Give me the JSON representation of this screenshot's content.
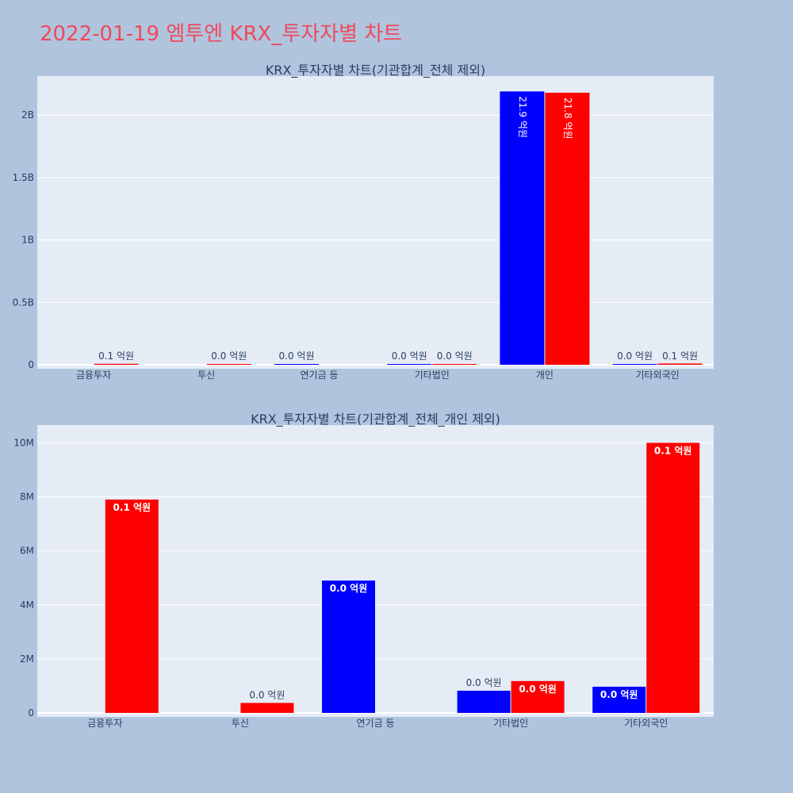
{
  "page": {
    "title": "2022-01-19 엠투엔 KRX_투자자별 차트"
  },
  "colors": {
    "buy": "#0000ff",
    "sell": "#ff0000",
    "plot_bg": "#e5ecf6",
    "page_bg": "#b0c4de",
    "title": "#ef4a5b"
  },
  "chart_data": [
    {
      "type": "bar",
      "title": "KRX_투자자별 차트(기관합계_전체 제외)",
      "categories": [
        "금융투자",
        "투신",
        "연기금 등",
        "기타법인",
        "개인",
        "기타외국인"
      ],
      "ylim": [
        0,
        2300000000
      ],
      "yticks": [
        {
          "value": 0,
          "label": "0"
        },
        {
          "value": 500000000,
          "label": "0.5B"
        },
        {
          "value": 1000000000,
          "label": "1B"
        },
        {
          "value": 1500000000,
          "label": "1.5B"
        },
        {
          "value": 2000000000,
          "label": "2B"
        }
      ],
      "grid": true,
      "series": [
        {
          "color": "#0000ff",
          "values": [
            0,
            0,
            4900000,
            820000,
            2190000000,
            970000
          ],
          "labels": [
            "",
            "",
            "0.0 억원",
            "0.0 억원",
            "21.9 억원",
            "0.0 억원"
          ]
        },
        {
          "color": "#ff0000",
          "values": [
            7900000,
            370000,
            0,
            1180000,
            2180000000,
            10000000
          ],
          "labels": [
            "0.1 억원",
            "0.0 억원",
            "",
            "0.0 억원",
            "21.8 억원",
            "0.1 억원"
          ]
        }
      ]
    },
    {
      "type": "bar",
      "title": "KRX_투자자별 차트(기관합계_전체_개인 제외)",
      "categories": [
        "금융투자",
        "투신",
        "연기금 등",
        "기타법인",
        "기타외국인"
      ],
      "ylim": [
        0,
        10600000
      ],
      "yticks": [
        {
          "value": 0,
          "label": "0"
        },
        {
          "value": 2000000,
          "label": "2M"
        },
        {
          "value": 4000000,
          "label": "4M"
        },
        {
          "value": 6000000,
          "label": "6M"
        },
        {
          "value": 8000000,
          "label": "8M"
        },
        {
          "value": 10000000,
          "label": "10M"
        }
      ],
      "grid": true,
      "series": [
        {
          "color": "#0000ff",
          "values": [
            0,
            0,
            4900000,
            820000,
            970000
          ],
          "labels": [
            "",
            "",
            "0.0 억원",
            "0.0 억원",
            "0.0 억원"
          ]
        },
        {
          "color": "#ff0000",
          "values": [
            7900000,
            370000,
            0,
            1180000,
            10000000
          ],
          "labels": [
            "0.1 억원",
            "0.0 억원",
            "",
            "0.0 억원",
            "0.1 억원"
          ]
        }
      ]
    }
  ]
}
